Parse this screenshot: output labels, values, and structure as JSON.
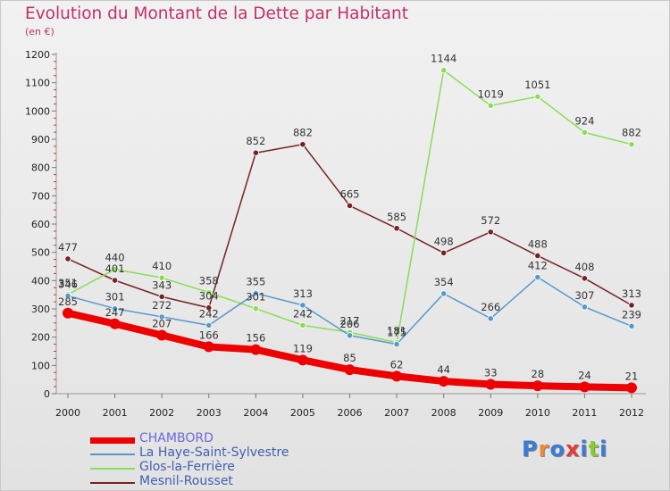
{
  "title": "Evolution du Montant de la Dette par Habitant",
  "unit": "(en €)",
  "logo": "Proxiti",
  "chart_data": {
    "type": "line",
    "title": "Evolution du Montant de la Dette par Habitant",
    "subtitle": "(en €)",
    "x": [
      "2000",
      "2001",
      "2002",
      "2003",
      "2004",
      "2005",
      "2006",
      "2007",
      "2008",
      "2009",
      "2010",
      "2011",
      "2012"
    ],
    "y_ticks": [
      "0",
      "100",
      "200",
      "300",
      "400",
      "500",
      "600",
      "700",
      "800",
      "900",
      "1000",
      "1100",
      "1200"
    ],
    "ylim": [
      0,
      1200
    ],
    "grid": false,
    "legend_position": "bottom-left",
    "series": [
      {
        "name": "CHAMBORD",
        "color": "#ee0000",
        "values": [
          285,
          247,
          207,
          166,
          156,
          119,
          85,
          62,
          44,
          33,
          28,
          24,
          21
        ]
      },
      {
        "name": "La Haye-Saint-Sylvestre",
        "color": "#5599cc",
        "values": [
          346,
          301,
          272,
          242,
          355,
          313,
          206,
          175,
          354,
          266,
          412,
          307,
          239
        ]
      },
      {
        "name": "Glos-la-Ferrière",
        "color": "#88dd55",
        "values": [
          351,
          440,
          410,
          358,
          301,
          242,
          217,
          181,
          1144,
          1019,
          1051,
          924,
          882
        ]
      },
      {
        "name": "Mesnil-Rousset",
        "color": "#772222",
        "values": [
          477,
          401,
          343,
          304,
          852,
          882,
          665,
          585,
          498,
          572,
          488,
          408,
          313
        ]
      }
    ]
  }
}
